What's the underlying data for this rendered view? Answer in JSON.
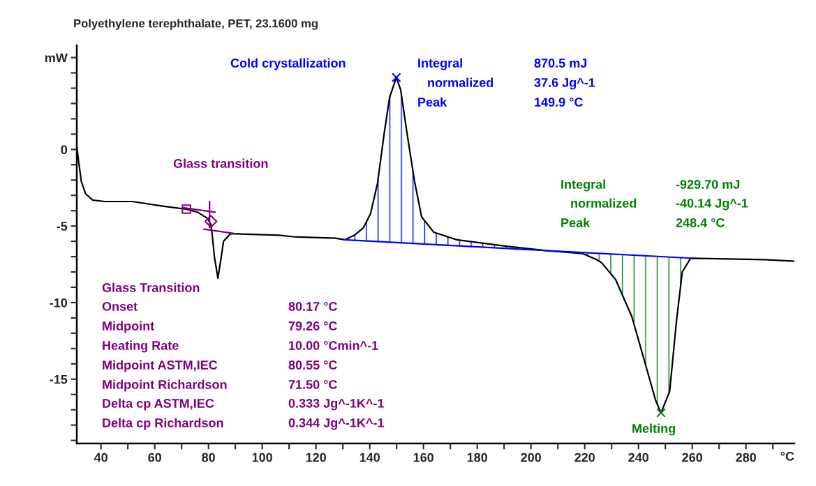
{
  "chart_data": {
    "type": "line",
    "title": "Polyethylene terephthalate, PET, 23.1600 mg",
    "xlabel": "°C",
    "xlim": [
      31,
      298
    ],
    "ylim": [
      -19.2,
      6.8
    ],
    "xticks": [
      40,
      {
        "value": 50,
        "label": null
      },
      60,
      {
        "value": 70,
        "label": null
      },
      80,
      {
        "value": 90,
        "label": null
      },
      100,
      {
        "value": 110,
        "label": null
      },
      120,
      {
        "value": 130,
        "label": null
      },
      140,
      {
        "value": 150,
        "label": null
      },
      160,
      {
        "value": 170,
        "label": null
      },
      180,
      {
        "value": 190,
        "label": null
      },
      200,
      {
        "value": 210,
        "label": null
      },
      220,
      {
        "value": 230,
        "label": null
      },
      240,
      {
        "value": 250,
        "label": null
      },
      260,
      {
        "value": 270,
        "label": null
      },
      280,
      {
        "value": 290,
        "label": null
      }
    ],
    "yticks": [
      {
        "value": -19,
        "label": null
      },
      {
        "value": -18,
        "label": null
      },
      {
        "value": -17,
        "label": null
      },
      {
        "value": -16,
        "label": null
      },
      -15,
      {
        "value": -14,
        "label": null
      },
      {
        "value": -13,
        "label": null
      },
      {
        "value": -12,
        "label": null
      },
      {
        "value": -11,
        "label": null
      },
      -10,
      {
        "value": -9,
        "label": null
      },
      {
        "value": -8,
        "label": null
      },
      {
        "value": -7,
        "label": null
      },
      {
        "value": -6,
        "label": null
      },
      -5,
      {
        "value": -4,
        "label": null
      },
      {
        "value": -3,
        "label": null
      },
      {
        "value": -2,
        "label": null
      },
      {
        "value": -1,
        "label": null
      },
      0,
      {
        "value": 1,
        "label": null
      },
      {
        "value": 2,
        "label": null
      },
      {
        "value": 3,
        "label": null
      },
      {
        "value": 4,
        "label": null
      },
      {
        "value": 5,
        "label": null
      },
      {
        "value": 6,
        "label": "mW"
      }
    ],
    "grid": false,
    "legend": false,
    "series": [
      {
        "color": "#000000",
        "x": [
          31,
          31.7,
          32.7,
          34.3,
          36.9,
          41.3,
          51.7,
          63,
          71.8,
          76,
          79.6,
          80.9,
          81.4,
          82.2,
          83.5,
          84.6,
          85.6,
          88.2,
          106.4,
          111.7,
          127.3,
          130.7,
          134.3,
          137.7,
          140.3,
          142.9,
          145.5,
          147.4,
          149.9,
          151.5,
          154.1,
          156.7,
          159.3,
          163.8,
          172.4,
          189.8,
          205.5,
          219.3,
          224.5,
          226.3,
          231.5,
          237.5,
          242.7,
          246.4,
          248.4,
          251.6,
          254.2,
          256.3,
          259.4,
          287,
          298
        ],
        "values": [
          0.2,
          -0.8,
          -2.1,
          -2.9,
          -3.3,
          -3.4,
          -3.4,
          -3.7,
          -3.9,
          -4.1,
          -4.5,
          -4.9,
          -5.6,
          -7.0,
          -8.4,
          -7.2,
          -6.0,
          -5.5,
          -5.6,
          -5.7,
          -5.8,
          -5.9,
          -5.6,
          -5.1,
          -4.2,
          -2.2,
          1.2,
          3.4,
          4.7,
          3.9,
          0.8,
          -2.1,
          -4.4,
          -5.4,
          -5.9,
          -6.3,
          -6.6,
          -6.8,
          -7.2,
          -7.4,
          -8.5,
          -10.9,
          -14.1,
          -16.4,
          -17.2,
          -15.8,
          -11.1,
          -8.0,
          -7.1,
          -7.2,
          -7.3
        ]
      },
      {
        "type": "line",
        "color": "#0000ff",
        "x": [
          130.7,
          205.5,
          259.4
        ],
        "values": [
          -5.9,
          -6.6,
          -7.1
        ]
      },
      {
        "type": "line",
        "color": "#800080",
        "x": [
          70.5,
          82.5
        ],
        "values": [
          -3.8,
          -4.1
        ]
      },
      {
        "type": "line",
        "color": "#800080",
        "x": [
          78.3,
          90
        ],
        "values": [
          -5.2,
          -5.5
        ]
      },
      {
        "type": "line",
        "color": "#800080",
        "x": [
          80.4,
          80.4
        ],
        "values": [
          -3.4,
          -5.1
        ]
      },
      {
        "type": "scatter",
        "marker": "square",
        "color": "#800080",
        "x": [
          71.8
        ],
        "values": [
          -3.9
        ]
      },
      {
        "type": "scatter",
        "marker": "diamond",
        "color": "#800080",
        "x": [
          80.9
        ],
        "values": [
          -4.7
        ]
      },
      {
        "type": "scatter",
        "marker": "cross",
        "color": "#0000ff",
        "x": [
          149.9
        ],
        "values": [
          4.7
        ]
      },
      {
        "type": "scatter",
        "marker": "cross",
        "color": "#008000",
        "x": [
          248.4
        ],
        "values": [
          -17.2
        ]
      }
    ],
    "annotations": [
      "Cold crystallization",
      "Integral",
      "normalized",
      "Peak",
      "870.5 mJ",
      "37.6 Jg^-1",
      "149.9 °C",
      "Glass transition",
      "Glass Transition",
      "Onset",
      "Midpoint",
      "Heating Rate",
      "Midpoint ASTM,IEC",
      "Midpoint Richardson",
      "Delta cp ASTM,IEC",
      "Delta cp Richardson",
      "80.17 °C",
      "79.26 °C",
      "10.00 °Cmin^-1",
      "80.55 °C",
      "71.50 °C",
      "0.333 Jg^-1K^-1",
      "0.344 Jg^-1K^-1",
      "Integral",
      "normalized",
      "Peak",
      "-929.70 mJ",
      "-40.14 Jg^-1",
      "248.4 °C",
      "Melting"
    ]
  }
}
